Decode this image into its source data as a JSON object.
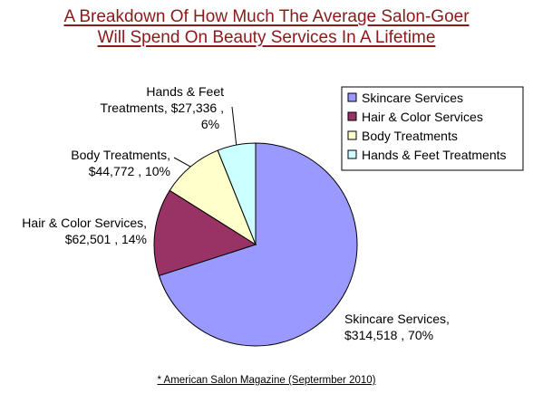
{
  "title": {
    "line1": "A Breakdown Of How Much The Average Salon-Goer",
    "line2": "Will Spend On Beauty Services In A Lifetime"
  },
  "source": "* American Salon Magazine (Septermber 2010)",
  "chart_data": {
    "type": "pie",
    "title": "A Breakdown Of How Much The Average Salon-Goer Will Spend On Beauty Services In A Lifetime",
    "categories": [
      "Skincare Services",
      "Hair & Color Services",
      "Body Treatments",
      "Hands & Feet Treatments"
    ],
    "values": [
      314518,
      62501,
      44772,
      27336
    ],
    "percents": [
      70,
      14,
      10,
      6
    ],
    "labels": [
      [
        "Skincare Services,",
        "$314,518 , 70%"
      ],
      [
        "Hair & Color Services,",
        "$62,501 , 14%"
      ],
      [
        "Body Treatments,",
        "$44,772 , 10%"
      ],
      [
        "Hands & Feet",
        "Treatments, $27,336 ,",
        "6%"
      ]
    ],
    "colors": [
      "#9999ff",
      "#993366",
      "#ffffcc",
      "#ccffff"
    ],
    "legend": {
      "position": "right",
      "entries": [
        "Skincare Services",
        "Hair & Color Services",
        "Body Treatments",
        "Hands & Feet Treatments"
      ]
    }
  }
}
